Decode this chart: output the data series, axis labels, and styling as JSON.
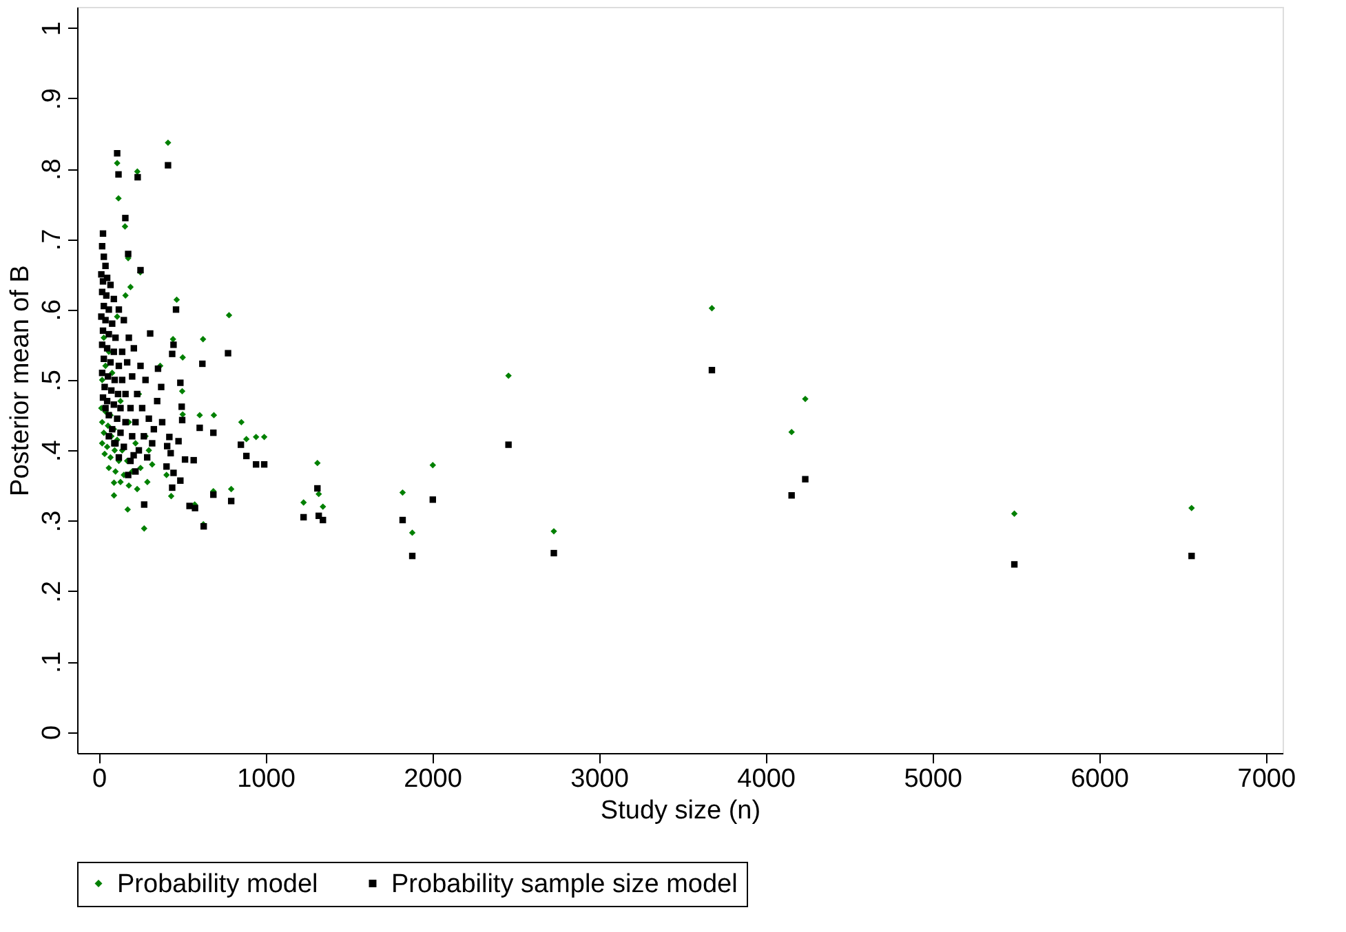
{
  "chart_data": {
    "type": "scatter",
    "xlabel": "Study size (n)",
    "ylabel": "Posterior mean of B",
    "xlim": [
      -130,
      7100
    ],
    "xticks": [
      0,
      1000,
      2000,
      3000,
      4000,
      5000,
      6000,
      7000
    ],
    "ylim": [
      -0.03,
      1.03
    ],
    "yticks": [
      0,
      {
        "value": 0.1,
        "label": ".1"
      },
      {
        "value": 0.2,
        "label": ".2"
      },
      {
        "value": 0.3,
        "label": ".3"
      },
      {
        "value": 0.4,
        "label": ".4"
      },
      {
        "value": 0.5,
        "label": ".5"
      },
      {
        "value": 0.6,
        "label": ".6"
      },
      {
        "value": 0.7,
        "label": ".7"
      },
      {
        "value": 0.8,
        "label": ".8"
      },
      {
        "value": 0.9,
        "label": ".9"
      },
      1
    ],
    "grid": false,
    "legend": "bottom",
    "series": [
      {
        "name": "Probability model",
        "color": "#008000",
        "marker": "diamond",
        "x": [
          3677,
          4237,
          4155,
          2457,
          2729,
          2003,
          1822,
          1880,
          1311,
          1319,
          1344,
          1228,
          6554,
          5491,
          415,
          110,
          231,
          118,
          157,
          176,
          249,
          190,
          467,
          781,
          625,
          445,
          503,
          855,
          943,
          992,
          885,
          690,
          605,
          794,
          687,
          434,
          173,
          272,
          627,
          575,
          91,
          91,
          291,
          406,
          368,
          500,
          503,
          20,
          35,
          15,
          40,
          70,
          20,
          55,
          90,
          30,
          75,
          110,
          20,
          50,
          95,
          140,
          35,
          70,
          120,
          170,
          60,
          100,
          150,
          200,
          250,
          130,
          180,
          230,
          40,
          60,
          30,
          80,
          130,
          180,
          220,
          110,
          160,
          240,
          280,
          300,
          320
        ],
        "values": [
          0.602,
          0.473,
          0.426,
          0.506,
          0.285,
          0.379,
          0.34,
          0.283,
          0.382,
          0.338,
          0.32,
          0.326,
          0.318,
          0.31,
          0.837,
          0.808,
          0.796,
          0.758,
          0.718,
          0.673,
          0.653,
          0.632,
          0.614,
          0.592,
          0.558,
          0.558,
          0.532,
          0.44,
          0.419,
          0.419,
          0.416,
          0.45,
          0.45,
          0.345,
          0.342,
          0.335,
          0.316,
          0.289,
          0.295,
          0.323,
          0.354,
          0.336,
          0.355,
          0.365,
          0.52,
          0.484,
          0.451,
          0.5,
          0.49,
          0.46,
          0.455,
          0.45,
          0.44,
          0.435,
          0.43,
          0.425,
          0.42,
          0.415,
          0.41,
          0.405,
          0.4,
          0.4,
          0.395,
          0.39,
          0.385,
          0.385,
          0.375,
          0.37,
          0.365,
          0.37,
          0.375,
          0.355,
          0.35,
          0.345,
          0.52,
          0.54,
          0.56,
          0.51,
          0.47,
          0.44,
          0.41,
          0.59,
          0.62,
          0.48,
          0.42,
          0.4,
          0.38
        ]
      },
      {
        "name": "Probability sample size model",
        "color": "#000000",
        "marker": "square",
        "x": [
          3677,
          4237,
          4155,
          2457,
          2729,
          2003,
          1822,
          1880,
          1311,
          1319,
          1344,
          1228,
          6554,
          5491,
          110,
          118,
          233,
          415,
          159,
          25,
          176,
          250,
          463,
          775,
          621,
          308,
          448,
          440,
          355,
          489,
          374,
          497,
          500,
          687,
          605,
          852,
          885,
          943,
          992,
          517,
          569,
          272,
          544,
          577,
          629,
          687,
          794,
          440,
          489,
          448,
          406,
          93,
          176,
          209,
          410,
          431,
          423,
          478,
          20,
          30,
          40,
          15,
          25,
          50,
          70,
          20,
          45,
          90,
          30,
          60,
          120,
          15,
          40,
          80,
          150,
          25,
          60,
          100,
          180,
          20,
          50,
          90,
          140,
          210,
          30,
          70,
          120,
          170,
          250,
          20,
          55,
          95,
          140,
          200,
          280,
          35,
          75,
          115,
          160,
          230,
          50,
          90,
          130,
          190,
          260,
          60,
          110,
          160,
          220,
          300,
          80,
          130,
          200,
          270,
          100,
          150,
          240,
          320,
          120,
          190,
          330,
          350,
          380,
          290,
          220,
          60,
          40,
          25
        ],
        "values": [
          0.514,
          0.359,
          0.336,
          0.408,
          0.254,
          0.33,
          0.301,
          0.25,
          0.346,
          0.307,
          0.301,
          0.305,
          0.25,
          0.238,
          0.822,
          0.792,
          0.788,
          0.805,
          0.73,
          0.708,
          0.679,
          0.656,
          0.6,
          0.538,
          0.523,
          0.566,
          0.55,
          0.537,
          0.516,
          0.496,
          0.49,
          0.462,
          0.443,
          0.425,
          0.432,
          0.408,
          0.392,
          0.38,
          0.38,
          0.387,
          0.386,
          0.323,
          0.321,
          0.318,
          0.292,
          0.337,
          0.328,
          0.347,
          0.357,
          0.368,
          0.377,
          0.41,
          0.365,
          0.393,
          0.406,
          0.396,
          0.419,
          0.413,
          0.69,
          0.675,
          0.662,
          0.65,
          0.64,
          0.645,
          0.635,
          0.625,
          0.62,
          0.615,
          0.605,
          0.6,
          0.6,
          0.59,
          0.585,
          0.58,
          0.585,
          0.57,
          0.565,
          0.56,
          0.56,
          0.55,
          0.545,
          0.54,
          0.54,
          0.545,
          0.53,
          0.525,
          0.52,
          0.525,
          0.52,
          0.51,
          0.505,
          0.5,
          0.5,
          0.505,
          0.5,
          0.49,
          0.485,
          0.48,
          0.48,
          0.48,
          0.47,
          0.465,
          0.46,
          0.46,
          0.46,
          0.45,
          0.445,
          0.44,
          0.44,
          0.445,
          0.43,
          0.425,
          0.42,
          0.42,
          0.41,
          0.405,
          0.4,
          0.41,
          0.39,
          0.385,
          0.43,
          0.47,
          0.44,
          0.39,
          0.37,
          0.42,
          0.46,
          0.475
        ]
      }
    ]
  }
}
